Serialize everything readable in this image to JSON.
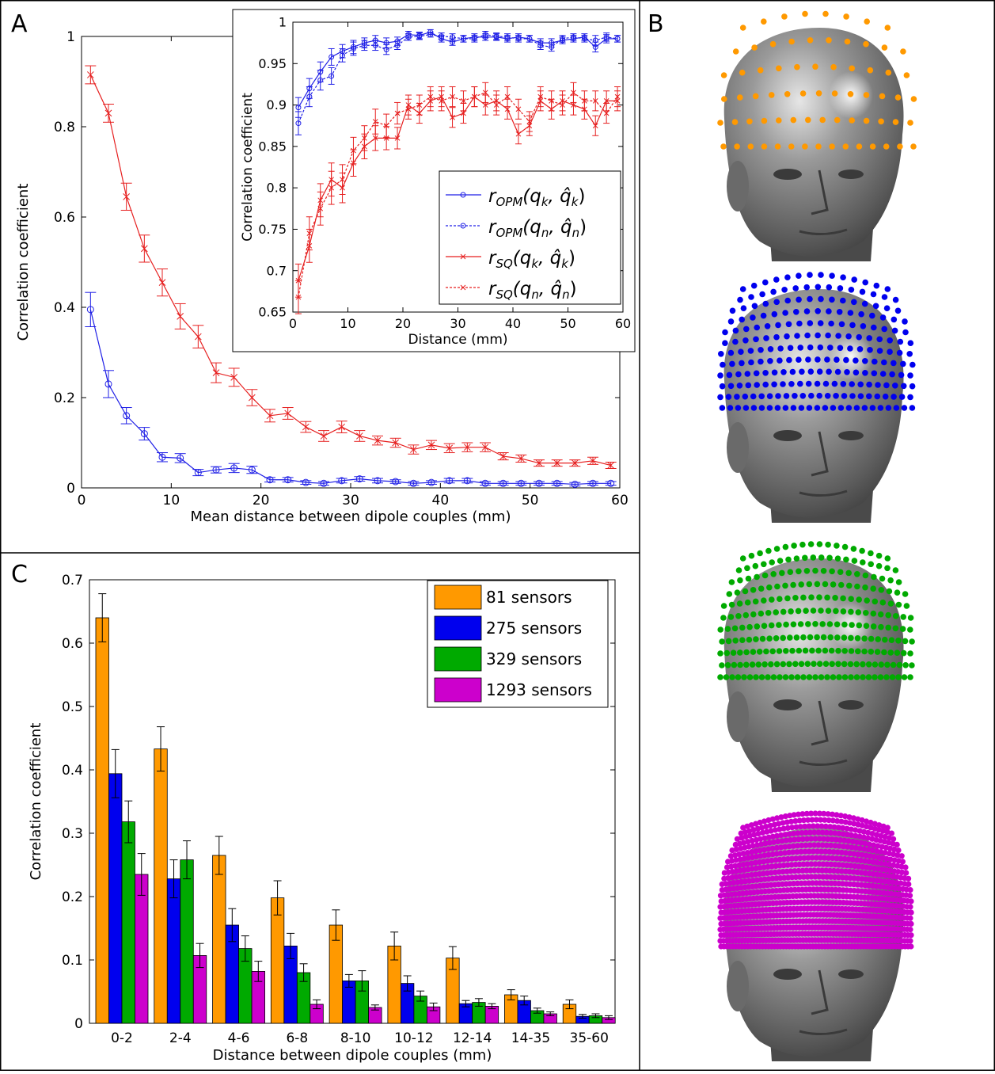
{
  "panels": {
    "a": "A",
    "b": "B",
    "c": "C"
  },
  "colors": {
    "blue": "#1f1fe6",
    "red": "#e61f1f",
    "orange": "#ff9900",
    "bar_blue": "#0000ee",
    "green": "#00aa00",
    "magenta": "#cc00cc",
    "head": "#8a8a8a"
  },
  "chart_data": [
    {
      "id": "A-main",
      "type": "line",
      "xlabel": "Mean distance between dipole couples (mm)",
      "ylabel": "Correlation coefficient",
      "xlim": [
        0,
        60
      ],
      "ylim": [
        0,
        1
      ],
      "xticks": [
        0,
        10,
        20,
        30,
        40,
        50,
        60
      ],
      "yticks": [
        0,
        0.2,
        0.4,
        0.6,
        0.8,
        1
      ],
      "x": [
        1,
        3,
        5,
        7,
        9,
        11,
        13,
        15,
        17,
        19,
        21,
        23,
        25,
        27,
        29,
        31,
        33,
        35,
        37,
        39,
        41,
        43,
        45,
        47,
        49,
        51,
        53,
        55,
        57,
        59
      ],
      "series": [
        {
          "color": "blue",
          "marker": "circle",
          "values": [
            0.395,
            0.23,
            0.16,
            0.12,
            0.068,
            0.066,
            0.034,
            0.04,
            0.044,
            0.04,
            0.018,
            0.018,
            0.012,
            0.01,
            0.016,
            0.02,
            0.016,
            0.014,
            0.01,
            0.012,
            0.016,
            0.016,
            0.01,
            0.01,
            0.01,
            0.01,
            0.01,
            0.008,
            0.01,
            0.01
          ],
          "errors": [
            0.038,
            0.03,
            0.018,
            0.014,
            0.01,
            0.01,
            0.007,
            0.007,
            0.01,
            0.008,
            0.005,
            0.005,
            0.004,
            0.004,
            0.005,
            0.005,
            0.005,
            0.004,
            0.004,
            0.004,
            0.005,
            0.005,
            0.004,
            0.004,
            0.004,
            0.004,
            0.004,
            0.004,
            0.004,
            0.004
          ]
        },
        {
          "color": "red",
          "marker": "x",
          "values": [
            0.915,
            0.83,
            0.645,
            0.53,
            0.455,
            0.38,
            0.335,
            0.255,
            0.245,
            0.2,
            0.16,
            0.165,
            0.135,
            0.115,
            0.135,
            0.115,
            0.105,
            0.1,
            0.085,
            0.095,
            0.088,
            0.09,
            0.09,
            0.07,
            0.065,
            0.055,
            0.055,
            0.055,
            0.06,
            0.05
          ],
          "errors": [
            0.02,
            0.02,
            0.03,
            0.03,
            0.03,
            0.028,
            0.025,
            0.022,
            0.02,
            0.018,
            0.014,
            0.013,
            0.012,
            0.012,
            0.013,
            0.012,
            0.01,
            0.01,
            0.01,
            0.01,
            0.01,
            0.01,
            0.01,
            0.008,
            0.008,
            0.007,
            0.007,
            0.007,
            0.008,
            0.007
          ]
        }
      ]
    },
    {
      "id": "A-inset",
      "type": "line",
      "xlabel": "Distance (mm)",
      "ylabel": "Correlation coefficient",
      "xlim": [
        0,
        60
      ],
      "ylim": [
        0.65,
        1
      ],
      "xticks": [
        0,
        10,
        20,
        30,
        40,
        50,
        60
      ],
      "yticks": [
        0.65,
        0.7,
        0.75,
        0.8,
        0.85,
        0.9,
        0.95,
        1
      ],
      "legend_position": "bottom-right",
      "legend": [
        {
          "base": "r",
          "sub": "OPM",
          "args": "(q",
          "arg1": "k",
          "mid": ", q̂",
          "arg2": "k",
          "end": ")",
          "color": "blue",
          "dashed": false,
          "marker": "circle"
        },
        {
          "base": "r",
          "sub": "OPM",
          "args": "(q",
          "arg1": "n",
          "mid": ", q̂",
          "arg2": "n",
          "end": ")",
          "color": "blue",
          "dashed": true,
          "marker": "circle"
        },
        {
          "base": "r",
          "sub": "SQ",
          "args": "(q",
          "arg1": "k",
          "mid": ", q̂",
          "arg2": "k",
          "end": ")",
          "color": "red",
          "dashed": false,
          "marker": "x"
        },
        {
          "base": "r",
          "sub": "SQ",
          "args": "(q",
          "arg1": "n",
          "mid": ", q̂",
          "arg2": "n",
          "end": ")",
          "color": "red",
          "dashed": true,
          "marker": "x"
        }
      ],
      "x": [
        1,
        3,
        5,
        7,
        9,
        11,
        13,
        15,
        17,
        19,
        21,
        23,
        25,
        27,
        29,
        31,
        33,
        35,
        37,
        39,
        41,
        43,
        45,
        47,
        49,
        51,
        53,
        55,
        57,
        59
      ],
      "series": [
        {
          "legend_index": 0,
          "values": [
            0.897,
            0.92,
            0.94,
            0.958,
            0.965,
            0.97,
            0.975,
            0.978,
            0.975,
            0.977,
            0.985,
            0.984,
            0.988,
            0.98,
            0.976,
            0.98,
            0.982,
            0.982,
            0.982,
            0.98,
            0.982,
            0.98,
            0.975,
            0.975,
            0.978,
            0.98,
            0.982,
            0.97,
            0.98,
            0.98
          ],
          "errors": [
            0.012,
            0.012,
            0.012,
            0.01,
            0.008,
            0.008,
            0.006,
            0.006,
            0.006,
            0.005,
            0.004,
            0.004,
            0.003,
            0.004,
            0.004,
            0.004,
            0.004,
            0.004,
            0.004,
            0.004,
            0.004,
            0.004,
            0.005,
            0.005,
            0.004,
            0.004,
            0.004,
            0.006,
            0.005,
            0.004
          ]
        },
        {
          "legend_index": 1,
          "values": [
            0.878,
            0.91,
            0.93,
            0.935,
            0.96,
            0.968,
            0.972,
            0.972,
            0.967,
            0.972,
            0.982,
            0.983,
            0.985,
            0.983,
            0.982,
            0.98,
            0.98,
            0.985,
            0.983,
            0.982,
            0.98,
            0.98,
            0.972,
            0.97,
            0.98,
            0.982,
            0.98,
            0.978,
            0.982,
            0.98
          ],
          "errors": [
            0.014,
            0.012,
            0.012,
            0.01,
            0.008,
            0.008,
            0.006,
            0.006,
            0.006,
            0.005,
            0.004,
            0.004,
            0.003,
            0.004,
            0.004,
            0.004,
            0.004,
            0.004,
            0.004,
            0.004,
            0.004,
            0.004,
            0.005,
            0.005,
            0.004,
            0.004,
            0.004,
            0.006,
            0.005,
            0.004
          ]
        },
        {
          "legend_index": 2,
          "values": [
            0.688,
            0.73,
            0.785,
            0.81,
            0.8,
            0.83,
            0.85,
            0.86,
            0.86,
            0.86,
            0.9,
            0.89,
            0.905,
            0.91,
            0.885,
            0.89,
            0.91,
            0.9,
            0.905,
            0.895,
            0.865,
            0.875,
            0.905,
            0.895,
            0.905,
            0.9,
            0.895,
            0.875,
            0.905,
            0.905
          ],
          "errors": [
            0.02,
            0.02,
            0.02,
            0.02,
            0.018,
            0.016,
            0.015,
            0.015,
            0.014,
            0.013,
            0.012,
            0.012,
            0.012,
            0.012,
            0.012,
            0.012,
            0.012,
            0.012,
            0.012,
            0.012,
            0.012,
            0.012,
            0.012,
            0.012,
            0.012,
            0.012,
            0.012,
            0.012,
            0.012,
            0.012
          ]
        },
        {
          "legend_index": 3,
          "values": [
            0.668,
            0.745,
            0.775,
            0.8,
            0.81,
            0.845,
            0.86,
            0.88,
            0.875,
            0.89,
            0.895,
            0.9,
            0.91,
            0.905,
            0.91,
            0.905,
            0.91,
            0.915,
            0.9,
            0.91,
            0.895,
            0.88,
            0.91,
            0.905,
            0.9,
            0.915,
            0.905,
            0.905,
            0.89,
            0.91
          ],
          "errors": [
            0.02,
            0.02,
            0.02,
            0.02,
            0.018,
            0.016,
            0.015,
            0.015,
            0.014,
            0.013,
            0.012,
            0.012,
            0.012,
            0.012,
            0.012,
            0.012,
            0.012,
            0.012,
            0.012,
            0.012,
            0.012,
            0.012,
            0.012,
            0.012,
            0.012,
            0.012,
            0.012,
            0.012,
            0.012,
            0.012
          ]
        }
      ]
    },
    {
      "id": "C",
      "type": "bar",
      "xlabel": "Distance between dipole couples (mm)",
      "ylabel": "Correlation coefficient",
      "ylim": [
        0,
        0.7
      ],
      "yticks": [
        0,
        0.1,
        0.2,
        0.3,
        0.4,
        0.5,
        0.6,
        0.7
      ],
      "legend_position": "top-right",
      "categories": [
        "0-2",
        "2-4",
        "4-6",
        "6-8",
        "8-10",
        "10-12",
        "12-14",
        "14-35",
        "35-60"
      ],
      "series": [
        {
          "name": "81 sensors",
          "color": "orange",
          "values": [
            0.64,
            0.433,
            0.265,
            0.198,
            0.155,
            0.122,
            0.103,
            0.045,
            0.03
          ],
          "errors": [
            0.038,
            0.035,
            0.03,
            0.027,
            0.024,
            0.022,
            0.018,
            0.008,
            0.007
          ]
        },
        {
          "name": "275 sensors",
          "color": "bar_blue",
          "values": [
            0.394,
            0.228,
            0.155,
            0.122,
            0.067,
            0.063,
            0.031,
            0.036,
            0.011
          ],
          "errors": [
            0.038,
            0.03,
            0.026,
            0.02,
            0.01,
            0.012,
            0.005,
            0.007,
            0.003
          ]
        },
        {
          "name": "329 sensors",
          "color": "green",
          "values": [
            0.318,
            0.258,
            0.118,
            0.08,
            0.067,
            0.043,
            0.033,
            0.02,
            0.012
          ],
          "errors": [
            0.033,
            0.03,
            0.02,
            0.014,
            0.016,
            0.008,
            0.006,
            0.004,
            0.003
          ]
        },
        {
          "name": "1293 sensors",
          "color": "magenta",
          "values": [
            0.235,
            0.107,
            0.082,
            0.03,
            0.025,
            0.026,
            0.027,
            0.015,
            0.009
          ],
          "errors": [
            0.033,
            0.019,
            0.016,
            0.007,
            0.004,
            0.006,
            0.004,
            0.003,
            0.003
          ]
        }
      ]
    }
  ],
  "heads": [
    {
      "color": "orange",
      "sensors": 81
    },
    {
      "color": "bar_blue",
      "sensors": 275
    },
    {
      "color": "green",
      "sensors": 329
    },
    {
      "color": "magenta",
      "sensors": 1293
    }
  ]
}
